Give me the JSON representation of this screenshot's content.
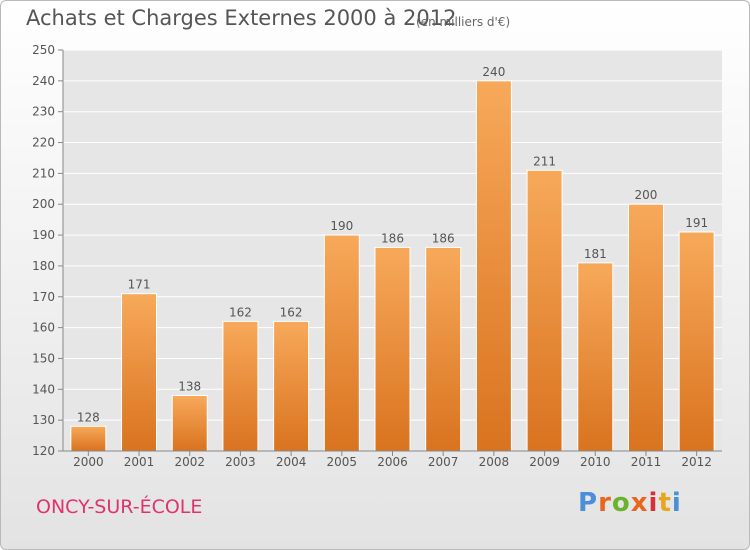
{
  "header": {
    "title": "Achats et Charges Externes 2000 à 2012",
    "subtitle": "(en milliers d'€)"
  },
  "footer": {
    "commune": "ONCY-SUR-ÉCOLE",
    "logo_text": "Proxiti",
    "logo_colors": [
      "#4a8fd8",
      "#e8661e",
      "#6ab42d",
      "#e8661e",
      "#d8303a",
      "#e8a51e",
      "#4a8fd8"
    ]
  },
  "colors": {
    "bar_light": "#f7a95a",
    "bar_dark": "#d9731f",
    "grid": "#ffffff",
    "text": "#555555",
    "commune": "#e0336e"
  },
  "chart_data": {
    "type": "bar",
    "title": "Achats et Charges Externes 2000 à 2012",
    "subtitle": "(en milliers d'€)",
    "categories": [
      "2000",
      "2001",
      "2002",
      "2003",
      "2004",
      "2005",
      "2006",
      "2007",
      "2008",
      "2009",
      "2010",
      "2011",
      "2012"
    ],
    "values": [
      128,
      171,
      138,
      162,
      162,
      190,
      186,
      186,
      240,
      211,
      181,
      200,
      191
    ],
    "ylim": [
      120,
      250
    ],
    "yticks": [
      120,
      130,
      140,
      150,
      160,
      170,
      180,
      190,
      200,
      210,
      220,
      230,
      240,
      250
    ],
    "grid": true,
    "data_labels": true
  }
}
